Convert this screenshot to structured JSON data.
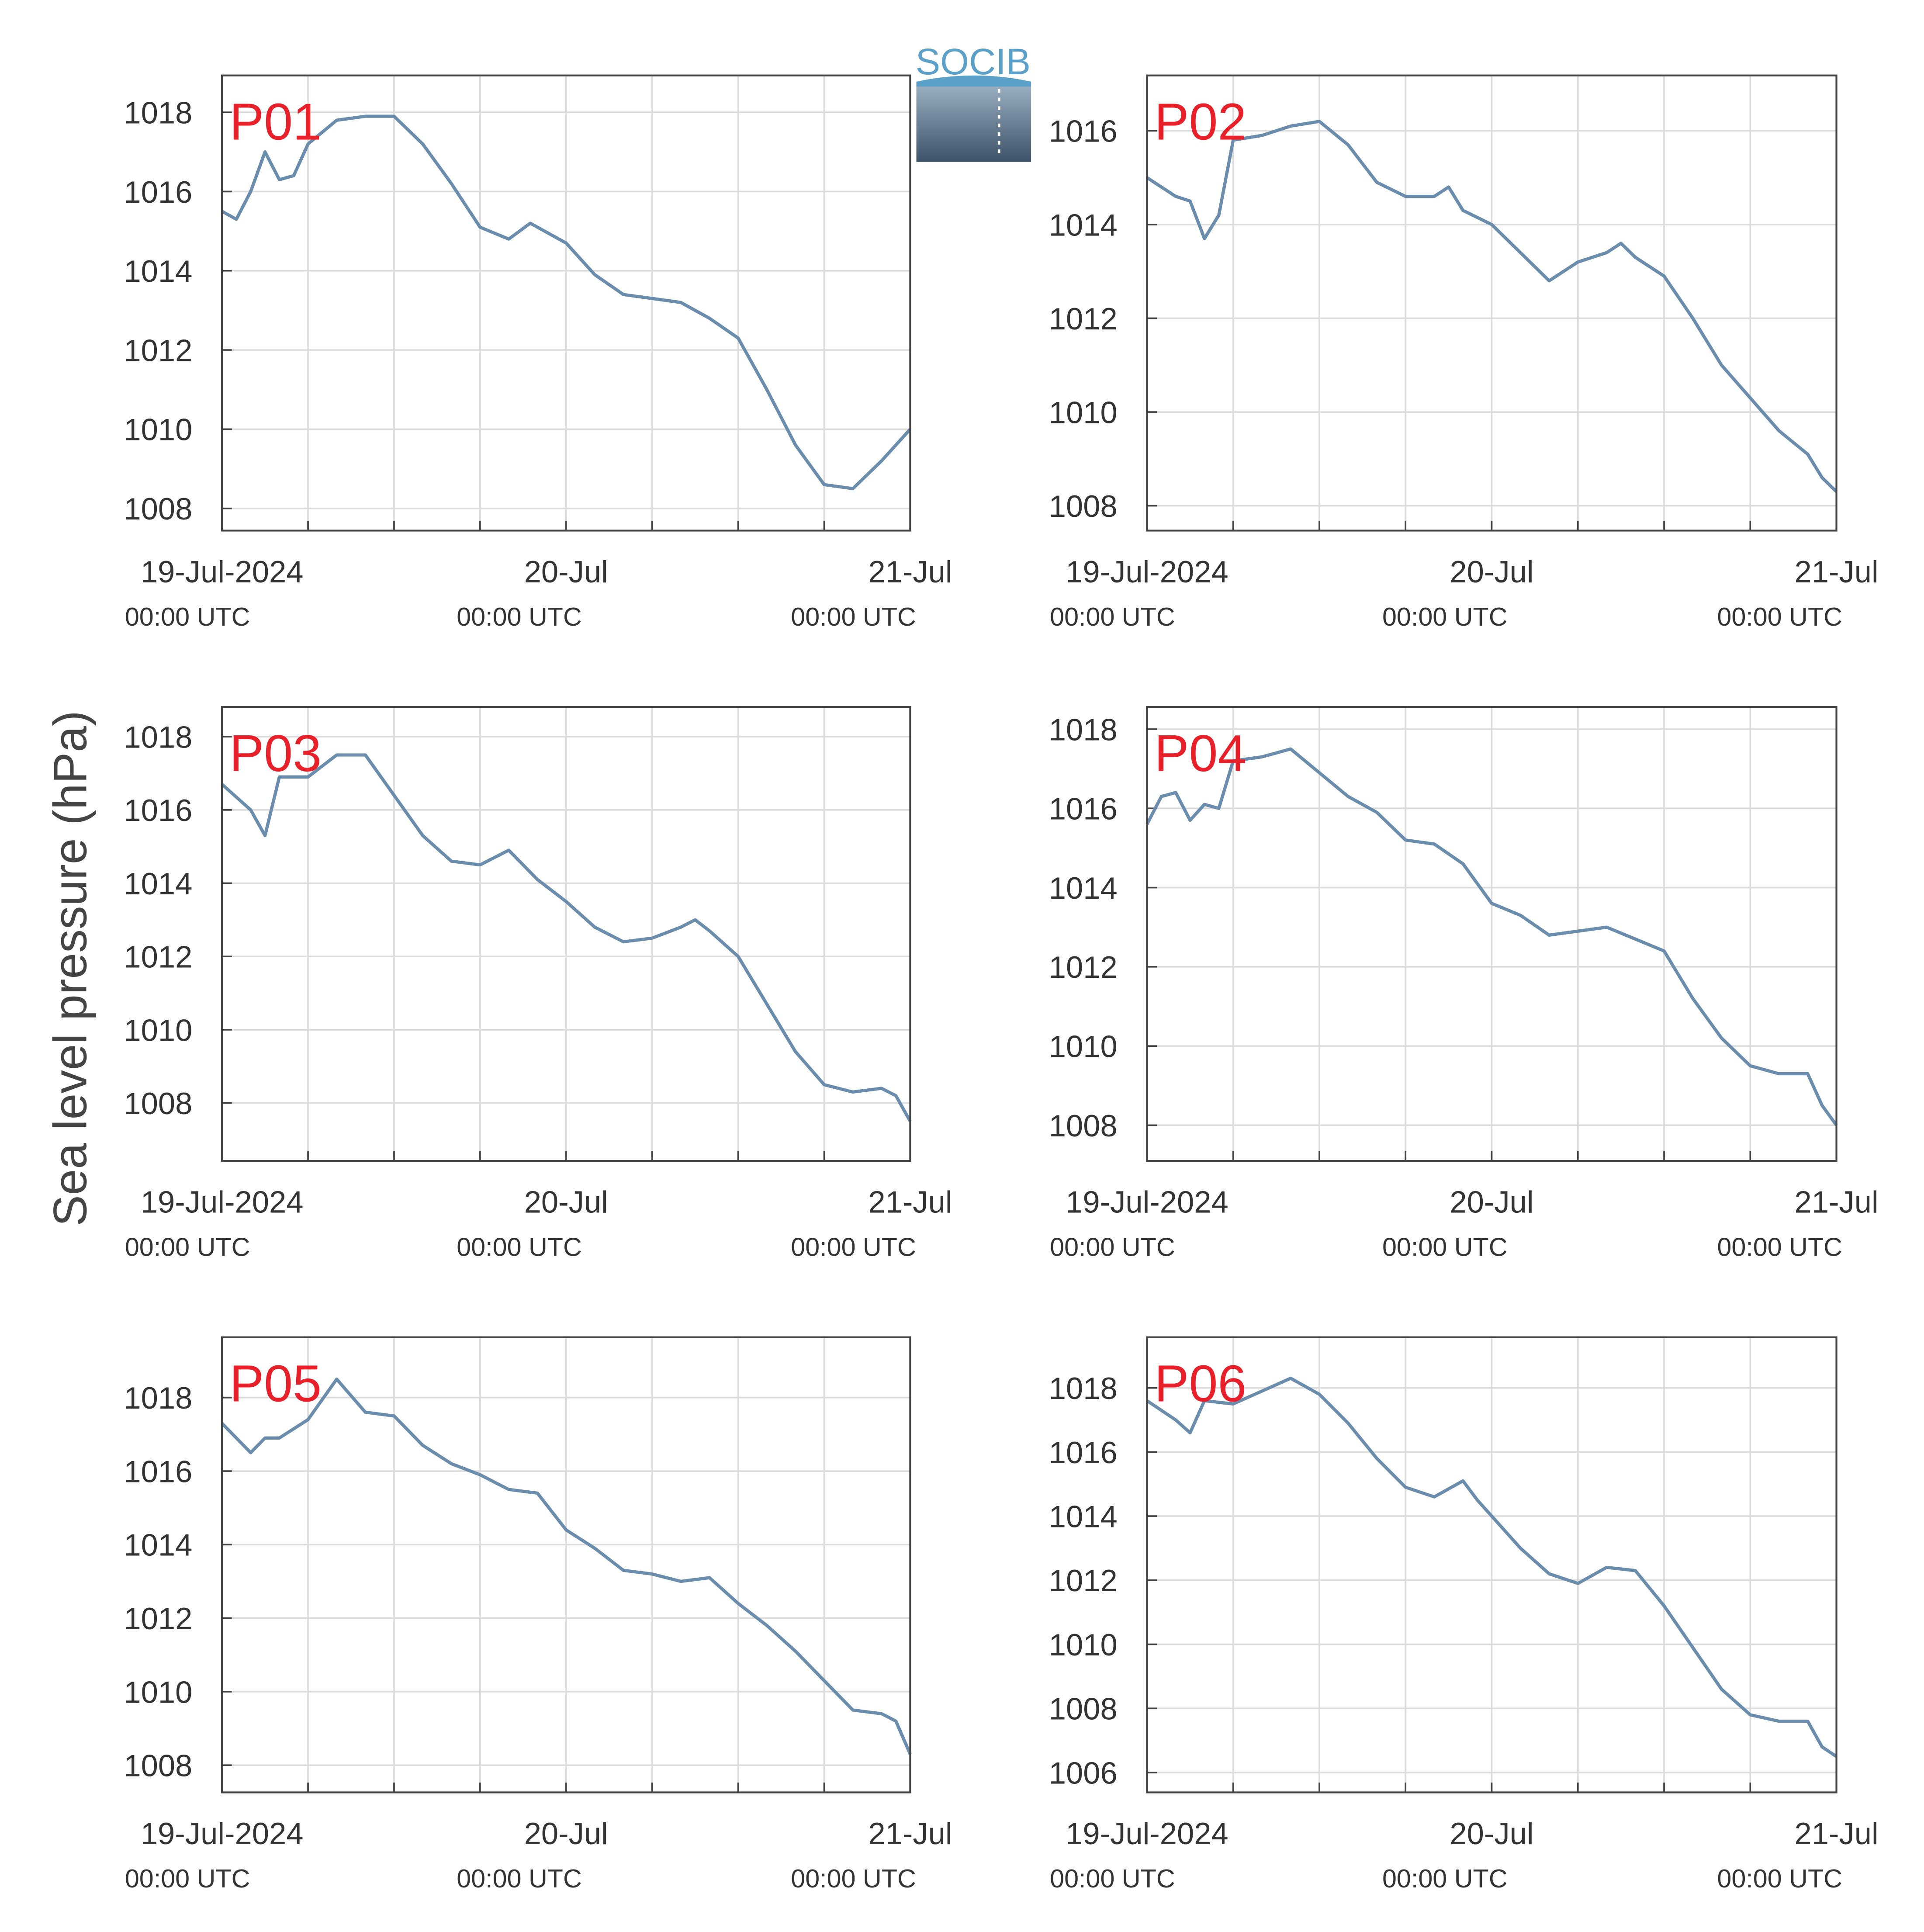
{
  "ylabel": "Sea level pressure (hPa)",
  "logo": "SOCIB",
  "chart_data": [
    {
      "type": "line",
      "title": "P01",
      "color": "#6a8cad",
      "xlim": [
        0,
        48
      ],
      "ylim": [
        1007.44,
        1018.93
      ],
      "yticks": [
        1008,
        1010,
        1012,
        1014,
        1016,
        1018
      ],
      "grid": true,
      "xticks": [
        {
          "value": 0,
          "label": "19-Jul-2024",
          "sublabel": "00:00 UTC"
        },
        {
          "value": 6,
          "label": null
        },
        {
          "value": 12,
          "label": null
        },
        {
          "value": 18,
          "label": null
        },
        {
          "value": 24,
          "label": "20-Jul",
          "sublabel": "00:00 UTC"
        },
        {
          "value": 30,
          "label": null
        },
        {
          "value": 36,
          "label": null
        },
        {
          "value": 42,
          "label": null
        },
        {
          "value": 48,
          "label": "21-Jul",
          "sublabel": "00:00 UTC"
        }
      ],
      "x": [
        0,
        1,
        2,
        3,
        4,
        5,
        6,
        8,
        10,
        12,
        14,
        16,
        18,
        20,
        21.5,
        24,
        26,
        28,
        30,
        32,
        34,
        36,
        38,
        40,
        42,
        44,
        46,
        48
      ],
      "values": [
        1015.5,
        1015.3,
        1016.0,
        1017.0,
        1016.3,
        1016.4,
        1017.2,
        1017.8,
        1017.9,
        1017.9,
        1017.2,
        1016.2,
        1015.1,
        1014.8,
        1015.2,
        1014.7,
        1013.9,
        1013.4,
        1013.3,
        1013.2,
        1012.8,
        1012.3,
        1011.0,
        1009.6,
        1008.6,
        1008.5,
        1009.2,
        1010.0
      ]
    },
    {
      "type": "line",
      "title": "P02",
      "color": "#6a8cad",
      "xlim": [
        0,
        48
      ],
      "ylim": [
        1007.47,
        1017.18
      ],
      "yticks": [
        1008,
        1010,
        1012,
        1014,
        1016
      ],
      "grid": true,
      "xticks": [
        {
          "value": 0,
          "label": "19-Jul-2024",
          "sublabel": "00:00 UTC"
        },
        {
          "value": 6,
          "label": null
        },
        {
          "value": 12,
          "label": null
        },
        {
          "value": 18,
          "label": null
        },
        {
          "value": 24,
          "label": "20-Jul",
          "sublabel": "00:00 UTC"
        },
        {
          "value": 30,
          "label": null
        },
        {
          "value": 36,
          "label": null
        },
        {
          "value": 42,
          "label": null
        },
        {
          "value": 48,
          "label": "21-Jul",
          "sublabel": "00:00 UTC"
        }
      ],
      "x": [
        0,
        2,
        3,
        4,
        5,
        6,
        8,
        10,
        12,
        14,
        16,
        18,
        20,
        21,
        22,
        24,
        26,
        28,
        30,
        32,
        33,
        34,
        36,
        38,
        40,
        42,
        44,
        46,
        47,
        48
      ],
      "values": [
        1015.0,
        1014.6,
        1014.5,
        1013.7,
        1014.2,
        1015.8,
        1015.9,
        1016.1,
        1016.2,
        1015.7,
        1014.9,
        1014.6,
        1014.6,
        1014.8,
        1014.3,
        1014.0,
        1013.4,
        1012.8,
        1013.2,
        1013.4,
        1013.6,
        1013.3,
        1012.9,
        1012.0,
        1011.0,
        1010.3,
        1009.6,
        1009.1,
        1008.6,
        1008.3
      ]
    },
    {
      "type": "line",
      "title": "P03",
      "color": "#6a8cad",
      "xlim": [
        0,
        48
      ],
      "ylim": [
        1006.42,
        1018.81
      ],
      "yticks": [
        1008,
        1010,
        1012,
        1014,
        1016,
        1018
      ],
      "grid": true,
      "xticks": [
        {
          "value": 0,
          "label": "19-Jul-2024",
          "sublabel": "00:00 UTC"
        },
        {
          "value": 6,
          "label": null
        },
        {
          "value": 12,
          "label": null
        },
        {
          "value": 18,
          "label": null
        },
        {
          "value": 24,
          "label": "20-Jul",
          "sublabel": "00:00 UTC"
        },
        {
          "value": 30,
          "label": null
        },
        {
          "value": 36,
          "label": null
        },
        {
          "value": 42,
          "label": null
        },
        {
          "value": 48,
          "label": "21-Jul",
          "sublabel": "00:00 UTC"
        }
      ],
      "x": [
        0,
        2,
        3,
        4,
        6,
        8,
        10,
        12,
        14,
        16,
        18,
        20,
        22,
        24,
        26,
        28,
        30,
        32,
        33,
        34,
        36,
        38,
        40,
        42,
        44,
        46,
        47,
        48
      ],
      "values": [
        1016.7,
        1016.0,
        1015.3,
        1016.9,
        1016.9,
        1017.5,
        1017.5,
        1016.4,
        1015.3,
        1014.6,
        1014.5,
        1014.9,
        1014.1,
        1013.5,
        1012.8,
        1012.4,
        1012.5,
        1012.8,
        1013.0,
        1012.7,
        1012.0,
        1010.7,
        1009.4,
        1008.5,
        1008.3,
        1008.4,
        1008.2,
        1007.5
      ]
    },
    {
      "type": "line",
      "title": "P04",
      "color": "#6a8cad",
      "xlim": [
        0,
        48
      ],
      "ylim": [
        1007.1,
        1018.56
      ],
      "yticks": [
        1008,
        1010,
        1012,
        1014,
        1016,
        1018
      ],
      "grid": true,
      "xticks": [
        {
          "value": 0,
          "label": "19-Jul-2024",
          "sublabel": "00:00 UTC"
        },
        {
          "value": 6,
          "label": null
        },
        {
          "value": 12,
          "label": null
        },
        {
          "value": 18,
          "label": null
        },
        {
          "value": 24,
          "label": "20-Jul",
          "sublabel": "00:00 UTC"
        },
        {
          "value": 30,
          "label": null
        },
        {
          "value": 36,
          "label": null
        },
        {
          "value": 42,
          "label": null
        },
        {
          "value": 48,
          "label": "21-Jul",
          "sublabel": "00:00 UTC"
        }
      ],
      "x": [
        0,
        1,
        2,
        3,
        4,
        5,
        6,
        8,
        10,
        12,
        14,
        16,
        18,
        20,
        22,
        24,
        26,
        28,
        30,
        32,
        34,
        36,
        38,
        40,
        42,
        44,
        46,
        47,
        48
      ],
      "values": [
        1015.6,
        1016.3,
        1016.4,
        1015.7,
        1016.1,
        1016.0,
        1017.2,
        1017.3,
        1017.5,
        1016.9,
        1016.3,
        1015.9,
        1015.2,
        1015.1,
        1014.6,
        1013.6,
        1013.3,
        1012.8,
        1012.9,
        1013.0,
        1012.7,
        1012.4,
        1011.2,
        1010.2,
        1009.5,
        1009.3,
        1009.3,
        1008.5,
        1008.0
      ]
    },
    {
      "type": "line",
      "title": "P05",
      "color": "#6a8cad",
      "xlim": [
        0,
        48
      ],
      "ylim": [
        1007.26,
        1019.64
      ],
      "yticks": [
        1008,
        1010,
        1012,
        1014,
        1016,
        1018
      ],
      "grid": true,
      "xticks": [
        {
          "value": 0,
          "label": "19-Jul-2024",
          "sublabel": "00:00 UTC"
        },
        {
          "value": 6,
          "label": null
        },
        {
          "value": 12,
          "label": null
        },
        {
          "value": 18,
          "label": null
        },
        {
          "value": 24,
          "label": "20-Jul",
          "sublabel": "00:00 UTC"
        },
        {
          "value": 30,
          "label": null
        },
        {
          "value": 36,
          "label": null
        },
        {
          "value": 42,
          "label": null
        },
        {
          "value": 48,
          "label": "21-Jul",
          "sublabel": "00:00 UTC"
        }
      ],
      "x": [
        0,
        2,
        3,
        4,
        6,
        8,
        10,
        12,
        14,
        16,
        18,
        20,
        22,
        24,
        26,
        28,
        30,
        32,
        34,
        36,
        38,
        40,
        42,
        44,
        46,
        47,
        48
      ],
      "values": [
        1017.3,
        1016.5,
        1016.9,
        1016.9,
        1017.4,
        1018.5,
        1017.6,
        1017.5,
        1016.7,
        1016.2,
        1015.9,
        1015.5,
        1015.4,
        1014.4,
        1013.9,
        1013.3,
        1013.2,
        1013.0,
        1013.1,
        1012.4,
        1011.8,
        1011.1,
        1010.3,
        1009.5,
        1009.4,
        1009.2,
        1008.3
      ]
    },
    {
      "type": "line",
      "title": "P06",
      "color": "#6a8cad",
      "xlim": [
        0,
        48
      ],
      "ylim": [
        1005.38,
        1019.58
      ],
      "yticks": [
        1006,
        1008,
        1010,
        1012,
        1014,
        1016,
        1018
      ],
      "grid": true,
      "xticks": [
        {
          "value": 0,
          "label": "19-Jul-2024",
          "sublabel": "00:00 UTC"
        },
        {
          "value": 6,
          "label": null
        },
        {
          "value": 12,
          "label": null
        },
        {
          "value": 18,
          "label": null
        },
        {
          "value": 24,
          "label": "20-Jul",
          "sublabel": "00:00 UTC"
        },
        {
          "value": 30,
          "label": null
        },
        {
          "value": 36,
          "label": null
        },
        {
          "value": 42,
          "label": null
        },
        {
          "value": 48,
          "label": "21-Jul",
          "sublabel": "00:00 UTC"
        }
      ],
      "x": [
        0,
        2,
        3,
        4,
        6,
        8,
        10,
        12,
        14,
        16,
        18,
        20,
        22,
        23,
        24,
        26,
        28,
        30,
        32,
        34,
        36,
        38,
        40,
        42,
        44,
        46,
        47,
        48
      ],
      "values": [
        1017.6,
        1017.0,
        1016.6,
        1017.6,
        1017.5,
        1017.9,
        1018.3,
        1017.8,
        1016.9,
        1015.8,
        1014.9,
        1014.6,
        1015.1,
        1014.5,
        1014.0,
        1013.0,
        1012.2,
        1011.9,
        1012.4,
        1012.3,
        1011.2,
        1009.9,
        1008.6,
        1007.8,
        1007.6,
        1007.6,
        1006.8,
        1006.5
      ]
    }
  ]
}
